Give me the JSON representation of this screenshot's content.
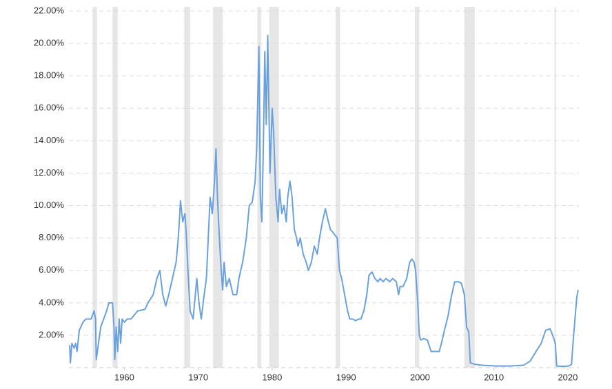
{
  "chart_data": {
    "type": "line",
    "color": "#6aa1dc",
    "grid": true,
    "shade_color": "#e6e6e6",
    "xlim": [
      1952.5,
      2021.5
    ],
    "xticks": [
      1960,
      1970,
      1980,
      1990,
      2000,
      2010,
      2020
    ],
    "ylim": [
      0,
      22
    ],
    "yticks": [
      {
        "value": 2,
        "label": "2.00%"
      },
      {
        "value": 4,
        "label": "4.00%"
      },
      {
        "value": 6,
        "label": "6.00%"
      },
      {
        "value": 8,
        "label": "8.00%"
      },
      {
        "value": 10,
        "label": "10.00%"
      },
      {
        "value": 12,
        "label": "12.00%"
      },
      {
        "value": 14,
        "label": "14.00%"
      },
      {
        "value": 16,
        "label": "16.00%"
      },
      {
        "value": 18,
        "label": "18.00%"
      },
      {
        "value": 20,
        "label": "20.00%"
      },
      {
        "value": 22,
        "label": "22.00%"
      }
    ],
    "shaded_ranges": [
      [
        1955.7,
        1956.3
      ],
      [
        1958.4,
        1959.1
      ],
      [
        1968.1,
        1968.9
      ],
      [
        1972.0,
        1973.3
      ],
      [
        1978.0,
        1978.5
      ],
      [
        1979.6,
        1980.9
      ],
      [
        1988.6,
        1989.2
      ],
      [
        1999.3,
        1999.9
      ],
      [
        2006.0,
        2007.4
      ],
      [
        2018.2,
        2018.4
      ]
    ],
    "x": [
      1952.6,
      1952.7,
      1952.9,
      1953.2,
      1953.4,
      1953.6,
      1953.9,
      1954.4,
      1954.8,
      1955.5,
      1955.9,
      1956.1,
      1956.2,
      1956.5,
      1956.8,
      1957.2,
      1957.6,
      1957.9,
      1958.4,
      1958.6,
      1958.7,
      1958.9,
      1959.1,
      1959.3,
      1959.5,
      1959.7,
      1960.0,
      1960.4,
      1960.9,
      1961.8,
      1962.8,
      1963.2,
      1963.9,
      1964.4,
      1964.8,
      1965.2,
      1965.6,
      1966.0,
      1966.5,
      1967.0,
      1967.3,
      1967.6,
      1967.9,
      1968.2,
      1968.4,
      1968.6,
      1968.9,
      1969.3,
      1969.6,
      1969.8,
      1970.1,
      1970.4,
      1970.8,
      1971.1,
      1971.6,
      1971.9,
      1972.2,
      1972.4,
      1972.6,
      1972.8,
      1973.1,
      1973.3,
      1973.5,
      1973.8,
      1974.2,
      1974.7,
      1975.2,
      1975.5,
      1976.0,
      1976.5,
      1976.9,
      1977.3,
      1977.7,
      1977.9,
      1978.2,
      1978.4,
      1978.6,
      1978.8,
      1979.0,
      1979.2,
      1979.4,
      1979.5,
      1979.7,
      1980.0,
      1980.2,
      1980.5,
      1980.8,
      1981.0,
      1981.3,
      1981.6,
      1981.9,
      1982.1,
      1982.4,
      1982.7,
      1983.0,
      1983.3,
      1983.5,
      1983.8,
      1984.2,
      1984.6,
      1984.9,
      1985.3,
      1985.7,
      1986.1,
      1986.4,
      1986.8,
      1987.2,
      1987.6,
      1987.9,
      1988.3,
      1988.8,
      1989.1,
      1989.4,
      1989.8,
      1990.2,
      1990.5,
      1990.9,
      1991.3,
      1991.7,
      1992.0,
      1992.4,
      1992.8,
      1993.1,
      1993.5,
      1993.9,
      1994.3,
      1994.6,
      1995.0,
      1995.4,
      1995.9,
      1996.3,
      1996.8,
      1997.1,
      1997.3,
      1997.7,
      1998.2,
      1998.6,
      1998.9,
      1999.2,
      1999.4,
      1999.7,
      1999.9,
      2000.1,
      2000.5,
      2001.0,
      2001.5,
      2001.9,
      2002.6,
      2002.9,
      2003.3,
      2003.8,
      2004.2,
      2004.7,
      2005.2,
      2005.6,
      2006.0,
      2006.3,
      2006.6,
      2006.8,
      2007.5,
      2008.4,
      2010.3,
      2012.1,
      2014.0,
      2014.9,
      2015.7,
      2016.4,
      2017.0,
      2017.6,
      2018.1,
      2018.3,
      2018.5,
      2019.2,
      2020.1,
      2020.5,
      2020.7,
      2021.0,
      2021.2,
      2021.4
    ],
    "values": [
      1.4,
      0.3,
      1.5,
      1.2,
      1.5,
      1.0,
      2.3,
      2.8,
      3.0,
      3.0,
      3.5,
      3.0,
      0.5,
      1.5,
      2.5,
      3.0,
      3.5,
      4.0,
      4.0,
      2.5,
      0.5,
      2.5,
      1.0,
      3.0,
      1.5,
      3.0,
      2.8,
      3.0,
      3.0,
      3.5,
      3.6,
      4.0,
      4.5,
      5.5,
      6.0,
      4.5,
      3.8,
      4.5,
      5.5,
      6.5,
      8.0,
      10.3,
      9.0,
      9.5,
      8.0,
      6.0,
      3.5,
      3.0,
      4.5,
      5.5,
      4.0,
      3.0,
      4.5,
      5.5,
      10.5,
      9.5,
      11.5,
      13.5,
      10.5,
      8.5,
      6.0,
      4.8,
      6.5,
      5.0,
      5.5,
      4.5,
      4.5,
      5.5,
      6.5,
      8.0,
      10.0,
      10.2,
      11.5,
      13.5,
      19.8,
      10.5,
      9.0,
      13.5,
      19.5,
      15.0,
      20.5,
      17.5,
      12.0,
      16.0,
      14.5,
      10.5,
      9.0,
      11.0,
      9.5,
      10.0,
      9.0,
      10.5,
      11.5,
      10.5,
      8.5,
      8.0,
      7.5,
      8.0,
      7.0,
      6.5,
      6.0,
      6.5,
      7.5,
      7.0,
      8.0,
      9.0,
      9.8,
      9.0,
      8.5,
      8.3,
      8.0,
      6.0,
      5.5,
      4.5,
      3.5,
      3.0,
      3.0,
      2.9,
      3.0,
      3.0,
      3.5,
      4.5,
      5.7,
      5.9,
      5.5,
      5.3,
      5.5,
      5.3,
      5.5,
      5.3,
      5.5,
      5.3,
      4.5,
      5.0,
      5.0,
      5.5,
      6.5,
      6.7,
      6.5,
      6.0,
      4.0,
      2.0,
      1.7,
      1.8,
      1.7,
      1.0,
      1.0,
      1.0,
      1.5,
      2.3,
      3.2,
      4.3,
      5.3,
      5.3,
      5.2,
      4.5,
      2.5,
      2.2,
      0.3,
      0.2,
      0.15,
      0.1,
      0.1,
      0.15,
      0.4,
      1.0,
      1.5,
      2.3,
      2.4,
      1.8,
      1.5,
      0.1,
      0.08,
      0.1,
      0.2,
      1.5,
      3.2,
      4.3,
      4.8
    ]
  }
}
